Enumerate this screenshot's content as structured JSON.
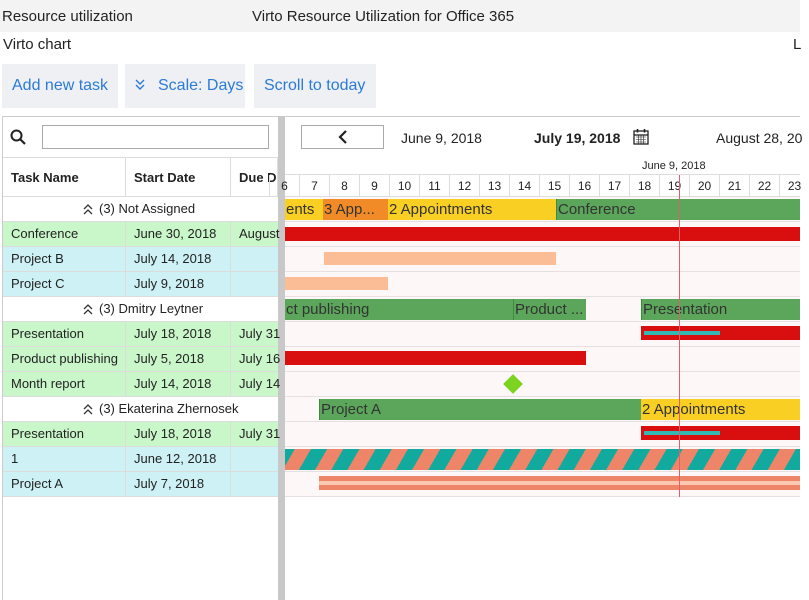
{
  "header": {
    "title": "Resource utilization",
    "app_name": "Virto Resource Utilization for Office 365"
  },
  "subheader": {
    "title": "Virto chart",
    "right": "L"
  },
  "toolbar": {
    "buttons": [
      "Add new task",
      "Scale: Days",
      "Scroll to today"
    ]
  },
  "grid": {
    "columns": [
      "Task Name",
      "Start Date",
      "Due D"
    ],
    "groups": [
      {
        "label": "(3) Not Assigned",
        "rows": [
          {
            "name": "Conference",
            "start": "June 30, 2018",
            "due": "August",
            "kind": "event"
          },
          {
            "name": "Project B",
            "start": "July 14, 2018",
            "kind": "project"
          },
          {
            "name": "Project C",
            "start": "July 9, 2018",
            "kind": "project"
          }
        ]
      },
      {
        "label": "(3) Dmitry Leytner",
        "rows": [
          {
            "name": "Presentation",
            "start": "July 18, 2018",
            "due": "July 31",
            "kind": "event"
          },
          {
            "name": "Product publishing",
            "start": "July 5, 2018",
            "due": "July 16",
            "kind": "event"
          },
          {
            "name": "Month report",
            "start": "July 14, 2018",
            "due": "July 14",
            "kind": "event"
          }
        ]
      },
      {
        "label": "(3) Ekaterina Zhernosek",
        "rows": [
          {
            "name": "Presentation",
            "start": "July 18, 2018",
            "due": "July 31",
            "kind": "event"
          },
          {
            "name": "1",
            "start": "June 12, 2018",
            "kind": "project"
          },
          {
            "name": "Project A",
            "start": "July 7, 2018",
            "kind": "project"
          }
        ]
      }
    ]
  },
  "timeline": {
    "prev": "June 9, 2018",
    "current": "July 19, 2018",
    "next": "August 28, 20",
    "scale_label": "June 9, 2018",
    "days": [
      "6",
      "7",
      "8",
      "9",
      "10",
      "11",
      "12",
      "13",
      "14",
      "15",
      "16",
      "17",
      "18",
      "19",
      "20",
      "21",
      "22",
      "23"
    ],
    "bar_labels": [
      "ents",
      "3 App...",
      "2 Appointments",
      "Conference",
      "ct publishing",
      "Product ...",
      "Presentation",
      "Project A",
      "2 Appointments"
    ]
  }
}
